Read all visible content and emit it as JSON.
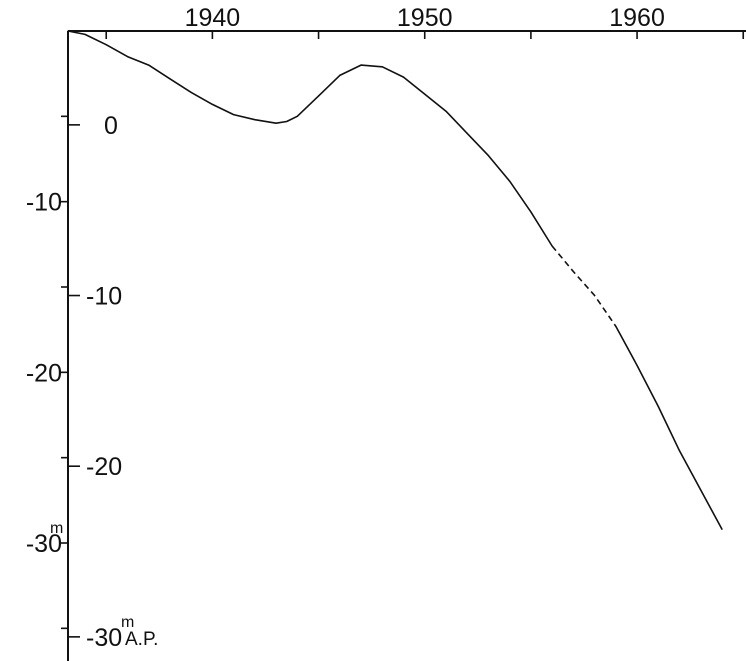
{
  "chart_data": {
    "type": "line",
    "title": "",
    "xlabel": "",
    "ylabel": "",
    "x_ticks": [
      "1940",
      "1950",
      "1960"
    ],
    "xlim": [
      1933.2,
      1966
    ],
    "left_axis": {
      "ticks": [
        "-10",
        "-20",
        "-30"
      ],
      "unit": "m",
      "ylim": [
        -41,
        0
      ]
    },
    "inner_axis": {
      "ticks": [
        "0",
        "-10",
        "-20",
        "-30"
      ],
      "unit": "m",
      "unit_suffix": "A.P.",
      "offset_from_left": 5.5
    },
    "grid": false,
    "series": [
      {
        "values_left_axis": [
          [
            1933.2,
            0.0
          ],
          [
            1934,
            -0.2
          ],
          [
            1935,
            -0.8
          ],
          [
            1936,
            -1.5
          ],
          [
            1937,
            -2.0
          ],
          [
            1938,
            -2.8
          ],
          [
            1939,
            -3.6
          ],
          [
            1940,
            -4.3
          ],
          [
            1941,
            -4.9
          ],
          [
            1942,
            -5.2
          ],
          [
            1943,
            -5.4
          ],
          [
            1943.5,
            -5.3
          ],
          [
            1944,
            -5.0
          ],
          [
            1945,
            -3.8
          ],
          [
            1946,
            -2.6
          ],
          [
            1947,
            -2.0
          ],
          [
            1948,
            -2.1
          ],
          [
            1949,
            -2.7
          ],
          [
            1950,
            -3.7
          ],
          [
            1951,
            -4.7
          ],
          [
            1952,
            -6.0
          ],
          [
            1953,
            -7.3
          ],
          [
            1954,
            -8.8
          ],
          [
            1955,
            -10.6
          ],
          [
            1956,
            -12.6
          ]
        ],
        "dashed_segment": [
          [
            1956,
            -12.6
          ],
          [
            1957,
            -14.1
          ],
          [
            1958,
            -15.5
          ],
          [
            1959,
            -17.3
          ]
        ],
        "values_left_axis_tail": [
          [
            1959,
            -17.3
          ],
          [
            1960,
            -19.6
          ],
          [
            1961,
            -22.0
          ],
          [
            1962,
            -24.6
          ],
          [
            1963,
            -26.9
          ],
          [
            1964,
            -29.2
          ]
        ]
      }
    ]
  }
}
